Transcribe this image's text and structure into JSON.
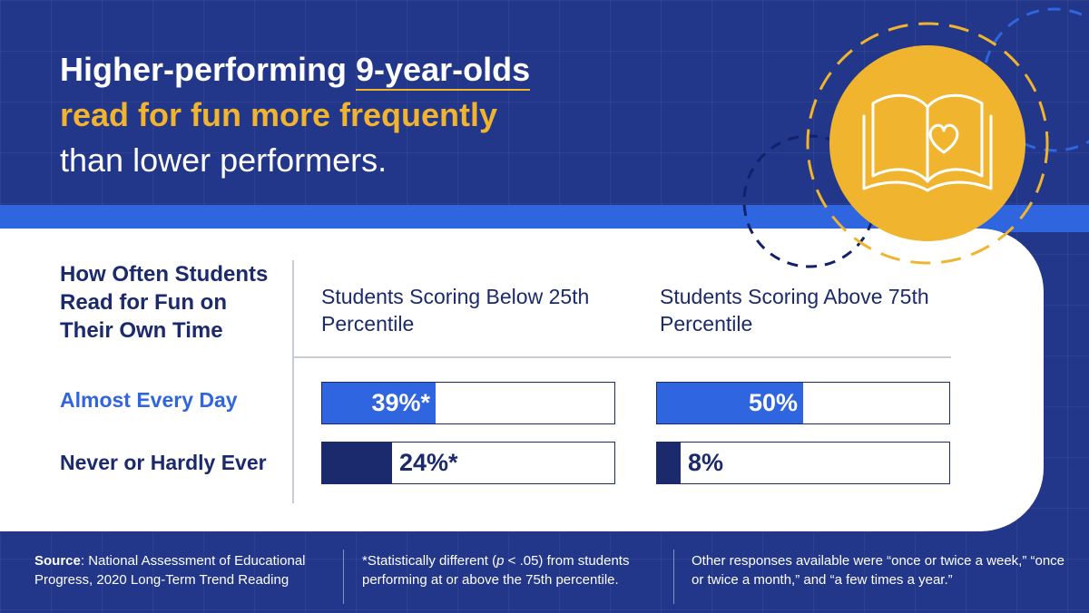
{
  "headline": {
    "part1": "Higher-performing ",
    "part1_emph": "9-year-olds",
    "line2": "read for fun more frequently",
    "line3": "than lower performers."
  },
  "icon": "open-book-with-heart-icon",
  "colors": {
    "background": "#22368a",
    "accent_blue": "#2f66df",
    "navy": "#1a2a6c",
    "gold": "#f1b42f"
  },
  "chart_data": {
    "type": "bar",
    "orientation": "horizontal",
    "row_header": "How Often Students Read for Fun on Their Own Time",
    "categories": [
      "Almost Every Day",
      "Never or Hardly Ever"
    ],
    "series": [
      {
        "name": "Students Scoring Below 25th Percentile",
        "values": [
          39,
          24
        ],
        "labels": [
          "39%*",
          "24%*"
        ]
      },
      {
        "name": "Students Scoring Above 75th Percentile",
        "values": [
          50,
          8
        ],
        "labels": [
          "50%",
          "8%"
        ]
      }
    ],
    "xlim": [
      0,
      100
    ],
    "unit": "%",
    "bar_colors": [
      "#2f66df",
      "#1a2a6c"
    ]
  },
  "footer": {
    "source_label": "Source",
    "source_text": ": National Assessment of Educational Progress, 2020 Long-Term Trend Reading",
    "note_pre": "*Statistically different (",
    "note_p": "p",
    "note_post": " < .05) from students performing at or above the 75th percentile.",
    "other": "Other responses available were “once or twice a week,” “once or twice a month,” and “a few times a year.”"
  }
}
